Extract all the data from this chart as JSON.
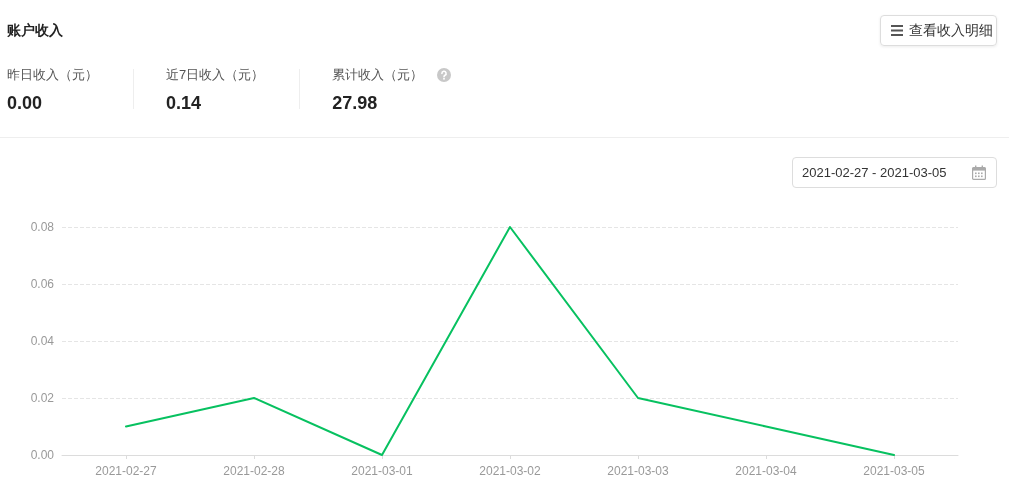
{
  "chart_data": [
    {
      "type": "other",
      "title": "账户收入",
      "annotations": [
        "昨日收入（元）",
        "0.00",
        "近7日收入（元）",
        "0.14",
        "累计收入（元）",
        "27.98",
        "查看收入明细"
      ]
    },
    {
      "type": "line",
      "annotations": [
        "2021-02-27 - 2021-03-05"
      ],
      "categories": [
        "2021-02-27",
        "2021-02-28",
        "2021-03-01",
        "2021-03-02",
        "2021-03-03",
        "2021-03-04",
        "2021-03-05"
      ],
      "series": [
        {
          "color": "#07c160",
          "values": [
            0.01,
            0.02,
            0,
            0.08,
            0.02,
            0.01,
            0
          ]
        }
      ],
      "ylim": [
        0,
        0.08
      ],
      "yticks": [
        {
          "value": 0,
          "label": "0.00"
        },
        0.02,
        0.04,
        0.06,
        0.08
      ],
      "grid": "y",
      "marker": "none",
      "line_style": "solid"
    }
  ]
}
